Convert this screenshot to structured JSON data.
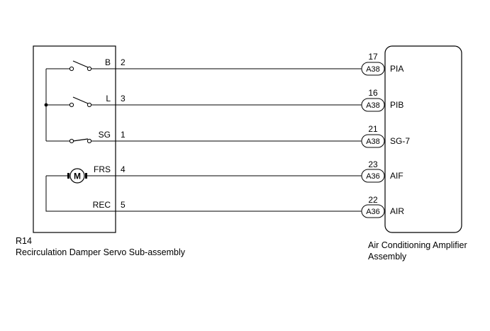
{
  "left_component": {
    "id": "R14",
    "name": "Recirculation Damper Servo Sub-assembly"
  },
  "right_component": {
    "name_line1": "Air Conditioning Amplifier",
    "name_line2": "Assembly"
  },
  "wires": [
    {
      "left_label": "B",
      "left_pin": "2",
      "right_pin": "17",
      "connector": "A38",
      "right_label": "PIA"
    },
    {
      "left_label": "L",
      "left_pin": "3",
      "right_pin": "16",
      "connector": "A38",
      "right_label": "PIB"
    },
    {
      "left_label": "SG",
      "left_pin": "1",
      "right_pin": "21",
      "connector": "A38",
      "right_label": "SG-7"
    },
    {
      "left_label": "FRS",
      "left_pin": "4",
      "right_pin": "23",
      "connector": "A36",
      "right_label": "AIF"
    },
    {
      "left_label": "REC",
      "left_pin": "5",
      "right_pin": "22",
      "connector": "A36",
      "right_label": "AIR"
    }
  ],
  "motor_symbol": "M",
  "icons": [
    "switch-icon",
    "motor-icon",
    "connector-icon"
  ]
}
